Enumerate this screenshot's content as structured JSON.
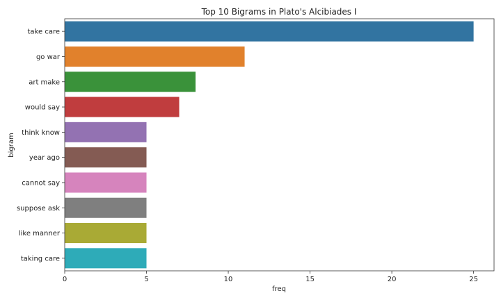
{
  "chart_data": {
    "type": "bar",
    "orientation": "horizontal",
    "title": "Top 10 Bigrams in Plato's Alcibiades I",
    "xlabel": "freq",
    "ylabel": "bigram",
    "categories": [
      "take care",
      "go war",
      "art make",
      "would say",
      "think know",
      "year ago",
      "cannot say",
      "suppose ask",
      "like manner",
      "taking care"
    ],
    "values": [
      25,
      11,
      8,
      7,
      5,
      5,
      5,
      5,
      5,
      5
    ],
    "colors": [
      "#3274a1",
      "#e1812c",
      "#3a923a",
      "#c03d3e",
      "#9372b2",
      "#845b53",
      "#d684bd",
      "#7f7f7f",
      "#a9aa35",
      "#2eabb8"
    ],
    "xlim": [
      0,
      26.25
    ],
    "xticks": [
      0,
      5,
      10,
      15,
      20,
      25
    ],
    "grid": false,
    "legend": "none"
  }
}
